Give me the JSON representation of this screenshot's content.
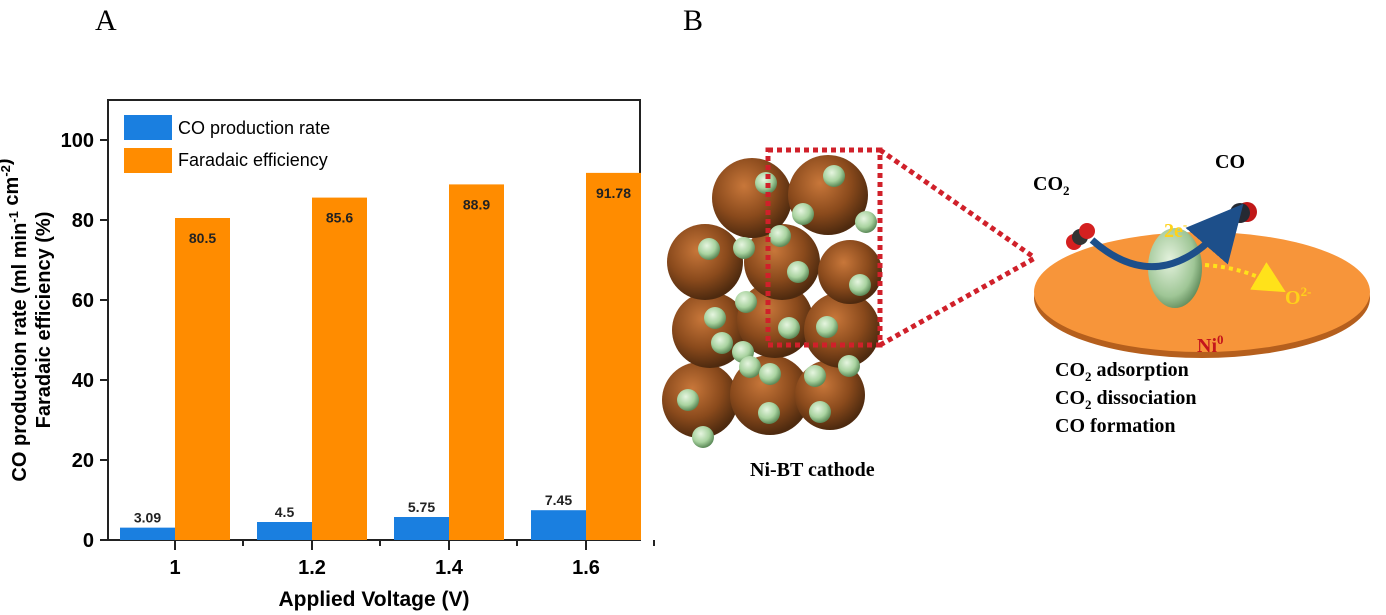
{
  "panels": {
    "a": "A",
    "b": "B"
  },
  "chart_data": {
    "type": "bar",
    "categories": [
      "1",
      "1.2",
      "1.4",
      "1.6"
    ],
    "series": [
      {
        "name": "CO production rate",
        "values": [
          3.09,
          4.5,
          5.75,
          7.45
        ],
        "labels": [
          "3.09",
          "4.5",
          "5.75",
          "7.45"
        ],
        "color": "#1a7fe0"
      },
      {
        "name": "Faradaic efficiency",
        "values": [
          80.5,
          85.6,
          88.9,
          91.78
        ],
        "labels": [
          "80.5",
          "85.6",
          "88.9",
          "91.78"
        ],
        "color": "#ff8c00"
      }
    ],
    "xlabel": "Applied Voltage (V)",
    "ylabel_line1": "CO production rate (ml min-1 cm-2)",
    "ylabel_line2": "Faradaic efficiency (%)",
    "ylim": [
      0,
      110
    ],
    "yticks": [
      "0",
      "20",
      "40",
      "60",
      "80",
      "100"
    ],
    "legend_position": "top-left",
    "grid": false
  },
  "diagram": {
    "cathode_label": "Ni-BT cathode",
    "co2": {
      "main": "CO",
      "sub": "2"
    },
    "co": "CO",
    "electrons": {
      "main": "2e",
      "sup": "-"
    },
    "nickel": {
      "main": "Ni",
      "sup": "0"
    },
    "oxide": {
      "main": "O",
      "sup": "2-"
    },
    "steps": [
      {
        "main": "CO",
        "sub": "2",
        "rest": " adsorption"
      },
      {
        "main": "CO",
        "sub": "2",
        "rest": " dissociation"
      },
      {
        "main": "CO",
        "sub": "",
        "rest": " formation"
      }
    ],
    "colors": {
      "support": "#f7953a",
      "particle": "#8a4a1c",
      "nickel": "#b8dcb0",
      "dotted_box": "#d0202a",
      "arrow": "#1d4f8a",
      "oxide_arrow": "#ffe21a"
    }
  }
}
